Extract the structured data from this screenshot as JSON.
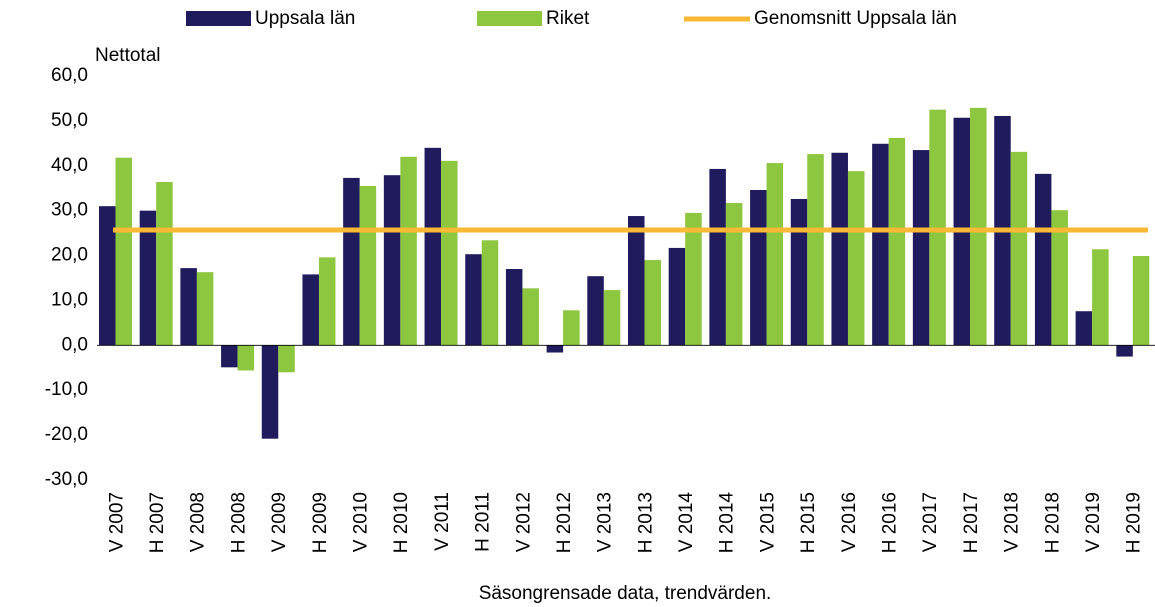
{
  "chart_data": {
    "type": "bar",
    "y_label": "Nettotal",
    "x_label": "Säsongrensade data, trendvärden.",
    "categories": [
      "V 2007",
      "H 2007",
      "V 2008",
      "H 2008",
      "V 2009",
      "H 2009",
      "V 2010",
      "H 2010",
      "V 2011",
      "H 2011",
      "V 2012",
      "H 2012",
      "V 2013",
      "H 2013",
      "V 2014",
      "H 2014",
      "V 2015",
      "H 2015",
      "V 2016",
      "H 2016",
      "V 2017",
      "H 2017",
      "V 2018",
      "H 2018",
      "V 2019",
      "H 2019"
    ],
    "series": [
      {
        "name": "Uppsala län",
        "color": "#1f1b5c",
        "values": [
          31.0,
          30.0,
          17.2,
          -4.9,
          -20.8,
          15.8,
          37.3,
          37.9,
          44.0,
          20.3,
          17.0,
          -1.6,
          15.4,
          28.8,
          21.7,
          39.3,
          34.6,
          32.6,
          42.9,
          44.9,
          43.5,
          50.7,
          51.1,
          38.2,
          7.6,
          -2.5
        ]
      },
      {
        "name": "Riket",
        "color": "#8dc63f",
        "values": [
          41.8,
          36.4,
          16.3,
          -5.6,
          -6.0,
          19.6,
          35.5,
          42.0,
          41.1,
          23.4,
          12.7,
          7.8,
          12.3,
          19.0,
          29.5,
          31.7,
          40.6,
          42.6,
          38.8,
          46.2,
          52.5,
          52.9,
          43.1,
          30.1,
          21.4,
          19.9
        ]
      }
    ],
    "average": {
      "name": "Genomsnitt Uppsala län",
      "color": "#f9b934",
      "value": 25.7
    },
    "ylim": [
      -30,
      60
    ],
    "yticks": [
      {
        "value": -30,
        "label": "-30,0"
      },
      {
        "value": -20,
        "label": "-20,0"
      },
      {
        "value": -10,
        "label": "-10,0"
      },
      {
        "value": 0,
        "label": "0,0"
      },
      {
        "value": 10,
        "label": "10,0"
      },
      {
        "value": 20,
        "label": "20,0"
      },
      {
        "value": 30,
        "label": "30,0"
      },
      {
        "value": 40,
        "label": "40,0"
      },
      {
        "value": 50,
        "label": "50,0"
      },
      {
        "value": 60,
        "label": "60,0"
      }
    ],
    "grid": false
  }
}
